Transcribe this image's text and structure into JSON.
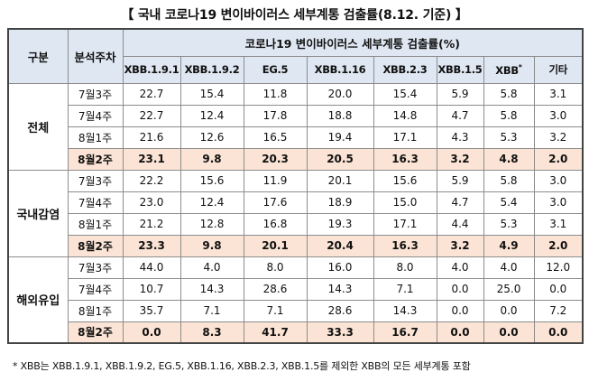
{
  "title": "【 국내 코로나19 변이바이러스 세부계통 검출률(8.12. 기준) 】",
  "header": {
    "group_col": "구분",
    "week_col": "분석주차",
    "span_title": "코로나19 변이바이러스 세부계통 검출률(%)",
    "variants": [
      "XBB.1.9.1",
      "XBB.1.9.2",
      "EG.5",
      "XBB.1.16",
      "XBB.2.3",
      "XBB.1.5",
      "XBB",
      "기타"
    ],
    "xbb_sup": "*"
  },
  "groups": [
    {
      "name": "전체",
      "rows": [
        {
          "week": "7월3주",
          "values": [
            "22.7",
            "15.4",
            "11.8",
            "20.0",
            "15.4",
            "5.9",
            "5.8",
            "3.1"
          ]
        },
        {
          "week": "7월4주",
          "values": [
            "22.7",
            "12.4",
            "17.8",
            "18.8",
            "14.8",
            "4.7",
            "5.8",
            "3.0"
          ]
        },
        {
          "week": "8월1주",
          "values": [
            "21.6",
            "12.6",
            "16.5",
            "19.4",
            "17.1",
            "4.3",
            "5.3",
            "3.2"
          ]
        },
        {
          "week": "8월2주",
          "values": [
            "23.1",
            "9.8",
            "20.3",
            "20.5",
            "16.3",
            "3.2",
            "4.8",
            "2.0"
          ]
        }
      ]
    },
    {
      "name": "국내감염",
      "rows": [
        {
          "week": "7월3주",
          "values": [
            "22.2",
            "15.6",
            "11.9",
            "20.1",
            "15.6",
            "5.9",
            "5.8",
            "3.0"
          ]
        },
        {
          "week": "7월4주",
          "values": [
            "23.0",
            "12.4",
            "17.6",
            "18.9",
            "15.0",
            "4.7",
            "5.4",
            "3.0"
          ]
        },
        {
          "week": "8월1주",
          "values": [
            "21.2",
            "12.8",
            "16.8",
            "19.3",
            "17.1",
            "4.4",
            "5.3",
            "3.1"
          ]
        },
        {
          "week": "8월2주",
          "values": [
            "23.3",
            "9.8",
            "20.1",
            "20.4",
            "16.3",
            "3.2",
            "4.9",
            "2.0"
          ]
        }
      ]
    },
    {
      "name": "해외유입",
      "rows": [
        {
          "week": "7월3주",
          "values": [
            "44.0",
            "4.0",
            "8.0",
            "16.0",
            "8.0",
            "4.0",
            "4.0",
            "12.0"
          ]
        },
        {
          "week": "7월4주",
          "values": [
            "10.7",
            "14.3",
            "28.6",
            "14.3",
            "7.1",
            "0.0",
            "25.0",
            "0.0"
          ]
        },
        {
          "week": "8월1주",
          "values": [
            "35.7",
            "7.1",
            "7.1",
            "28.6",
            "14.3",
            "0.0",
            "0.0",
            "7.2"
          ]
        },
        {
          "week": "8월2주",
          "values": [
            "0.0",
            "8.3",
            "41.7",
            "33.3",
            "16.7",
            "0.0",
            "0.0",
            "0.0"
          ]
        }
      ]
    }
  ],
  "highlight_color": "#fbe4d5",
  "header_color": "#dfe7f2",
  "footnote": "* XBB는 XBB.1.9.1, XBB.1.9.2, EG.5, XBB.1.16, XBB.2.3, XBB.1.5를 제외한 XBB의 모든 세부계통 포함"
}
